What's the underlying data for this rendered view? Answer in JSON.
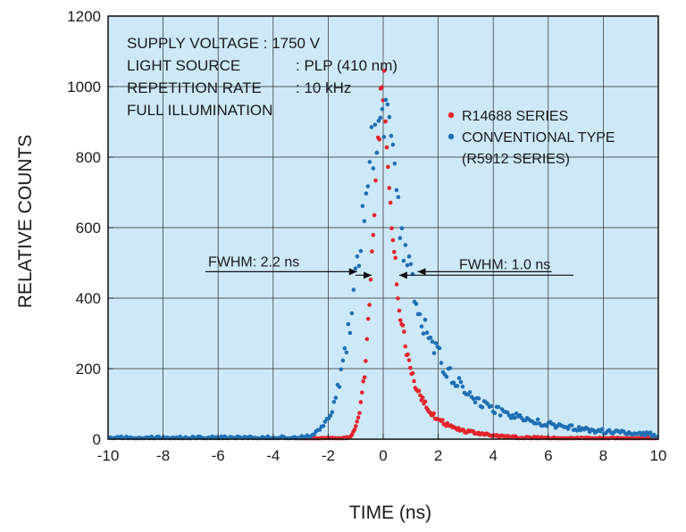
{
  "chart_data": {
    "type": "scatter",
    "xlabel": "TIME (ns)",
    "ylabel": "RELATIVE COUNTS",
    "xlim": [
      -10,
      10
    ],
    "ylim": [
      0,
      1200
    ],
    "x_ticks": [
      "-10",
      "-8",
      "-6",
      "-4",
      "-2",
      "0",
      "2",
      "4",
      "6",
      "8",
      "10"
    ],
    "y_ticks": [
      "0",
      "200",
      "400",
      "600",
      "800",
      "1000",
      "1200"
    ],
    "grid": true,
    "background": "#cde9f7",
    "conditions": [
      "SUPPLY VOLTAGE : 1750 V",
      "LIGHT SOURCE",
      ": PLP (410 nm)",
      "REPETITION RATE",
      ": 10 kHz",
      "FULL ILLUMINATION"
    ],
    "series": [
      {
        "name": "R14688 SERIES",
        "color": "#e3242b",
        "peak_time_ns": 0.05,
        "peak_counts": 1000,
        "fwhm_ns": 1.0,
        "fwhm_label": "FWHM: 1.0 ns"
      },
      {
        "name": "CONVENTIONAL TYPE",
        "name_line2": "(R5912 SERIES)",
        "color": "#1f6fb5",
        "peak_time_ns": 0.1,
        "peak_counts": 950,
        "fwhm_ns": 2.2,
        "fwhm_label": "FWHM: 2.2 ns"
      }
    ]
  }
}
